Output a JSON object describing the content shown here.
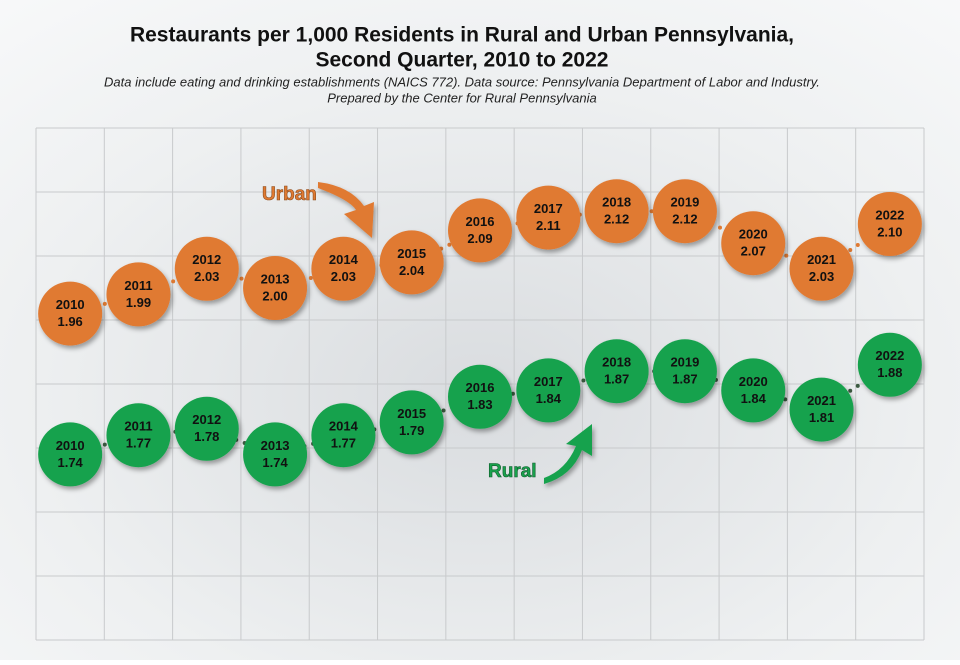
{
  "chart_data": {
    "type": "line",
    "title": "Restaurants per 1,000 Residents in Rural and Urban Pennsylvania,",
    "title_line2": "Second Quarter, 2010 to 2022",
    "subtitle": "Data include eating and drinking establishments (NAICS 772). Data source: Pennsylvania Department of Labor and Industry.",
    "subtitle_line2": "Prepared by the Center for Rural Pennsylvania",
    "categories": [
      "2010",
      "2011",
      "2012",
      "2013",
      "2014",
      "2015",
      "2016",
      "2017",
      "2018",
      "2019",
      "2020",
      "2021",
      "2022"
    ],
    "series": [
      {
        "name": "Urban",
        "color": "#e07a32",
        "values": [
          1.96,
          1.99,
          2.03,
          2.0,
          2.03,
          2.04,
          2.09,
          2.11,
          2.12,
          2.12,
          2.07,
          2.03,
          2.1
        ],
        "value_labels": [
          "1.96",
          "1.99",
          "2.03",
          "2.00",
          "2.03",
          "2.04",
          "2.09",
          "2.11",
          "2.12",
          "2.12",
          "2.07",
          "2.03",
          "2.10"
        ]
      },
      {
        "name": "Rural",
        "color": "#19a24d",
        "values": [
          1.74,
          1.77,
          1.78,
          1.74,
          1.77,
          1.79,
          1.83,
          1.84,
          1.87,
          1.87,
          1.84,
          1.81,
          1.88
        ],
        "value_labels": [
          "1.74",
          "1.77",
          "1.78",
          "1.74",
          "1.77",
          "1.79",
          "1.83",
          "1.84",
          "1.87",
          "1.87",
          "1.84",
          "1.81",
          "1.88"
        ]
      }
    ],
    "ylim": [
      1.45,
      2.25
    ],
    "yticks": [
      1.45,
      1.55,
      1.65,
      1.75,
      1.85,
      1.95,
      2.05,
      2.15,
      2.25
    ],
    "grid": true
  }
}
